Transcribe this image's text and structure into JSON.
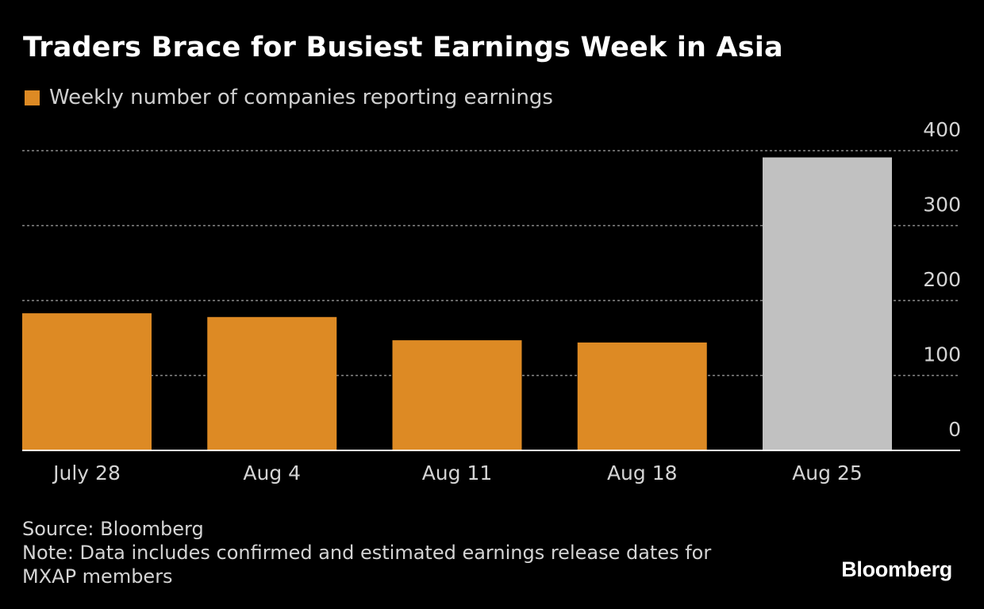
{
  "chart_data": {
    "type": "bar",
    "title": "Traders Brace for Busiest Earnings Week in Asia",
    "legend": [
      {
        "label": "Weekly number of companies reporting earnings",
        "color": "#dd8a24"
      }
    ],
    "categories": [
      "July 28",
      "Aug 4",
      "Aug 11",
      "Aug 18",
      "Aug 25"
    ],
    "values": [
      183,
      178,
      147,
      144,
      391
    ],
    "bar_colors": [
      "#dd8a24",
      "#dd8a24",
      "#dd8a24",
      "#dd8a24",
      "#c1c1c1"
    ],
    "y_ticks": [
      0,
      100,
      200,
      300,
      400
    ],
    "ylim": [
      0,
      400
    ],
    "grid": true,
    "y_axis_position": "right",
    "xlabel": "",
    "ylabel": ""
  },
  "footer": {
    "source": "Source: Bloomberg",
    "note_line1": "Note: Data includes confirmed and estimated earnings release dates for",
    "note_line2": "MXAP members"
  },
  "brand": "Bloomberg"
}
